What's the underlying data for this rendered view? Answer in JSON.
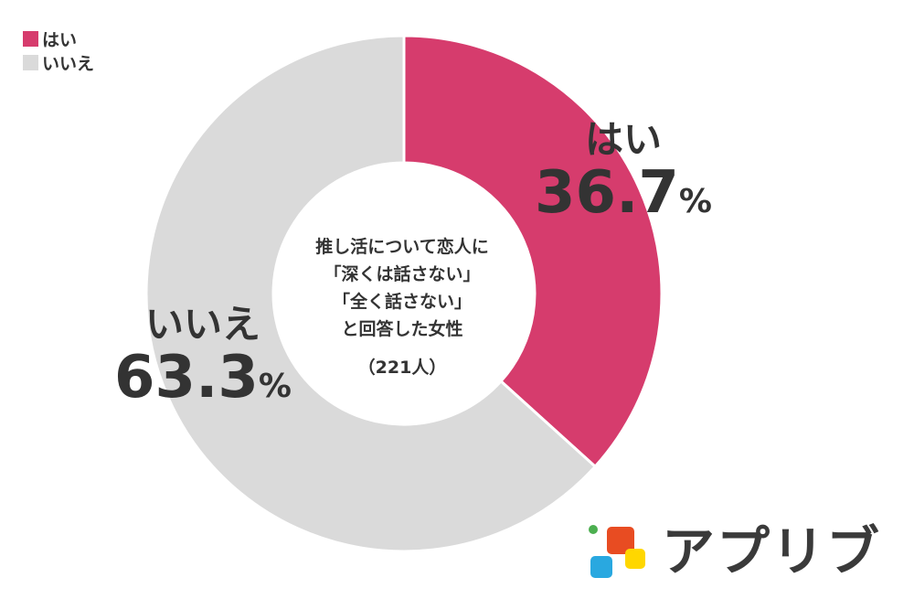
{
  "chart_data": {
    "type": "pie",
    "title": "推し活について恋人に「深くは話さない」「全く話さない」と回答した女性",
    "title_lines": [
      "推し活について恋人に",
      "「深くは話さない」",
      "「全く話さない」",
      "と回答した女性"
    ],
    "sample_size": "（221人）",
    "donut": true,
    "legend_position": "top-left",
    "slices": [
      {
        "label": "はい",
        "value": 36.7,
        "color": "#d63c6d"
      },
      {
        "label": "いいえ",
        "value": 63.3,
        "color": "#dadada"
      }
    ]
  },
  "legend": [
    {
      "label": "はい",
      "color": "#d63c6d"
    },
    {
      "label": "いいえ",
      "color": "#dadada"
    }
  ],
  "slice_labels": [
    {
      "name": "はい",
      "value": "36.7",
      "unit": "%"
    },
    {
      "name": "いいえ",
      "value": "63.3",
      "unit": "%"
    }
  ],
  "logo": {
    "text": "アプリブ",
    "colors": [
      "#e84c22",
      "#f5a623",
      "#ffd700",
      "#29a8e0",
      "#4caf50"
    ]
  }
}
